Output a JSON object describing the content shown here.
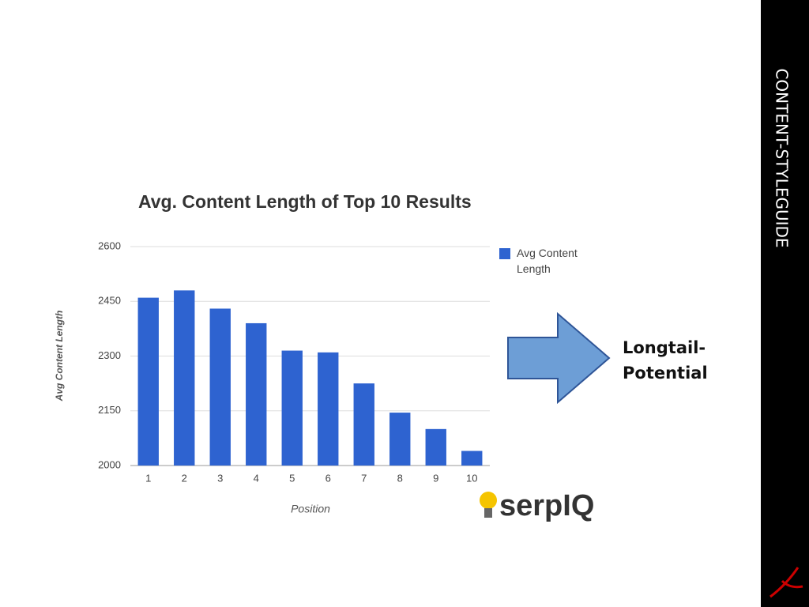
{
  "chart_data": {
    "type": "bar",
    "title": "Avg. Content Length of Top 10 Results",
    "x_label": "Position",
    "y_label": "Avg Content Length",
    "categories": [
      "1",
      "2",
      "3",
      "4",
      "5",
      "6",
      "7",
      "8",
      "9",
      "10"
    ],
    "series": [
      {
        "name": "Avg Content Length",
        "color": "#2e63d0",
        "values": [
          2460,
          2480,
          2430,
          2390,
          2315,
          2310,
          2225,
          2145,
          2100,
          2040
        ]
      }
    ],
    "ylim": [
      2000,
      2600
    ],
    "yticks": [
      2000,
      2150,
      2300,
      2450,
      2600
    ],
    "grid": true,
    "legend": "right"
  },
  "slide": {
    "side_title": "CONTENT-STYLEGUIDE",
    "callout": "Longtail-Potential",
    "logo": "serpIQ"
  }
}
